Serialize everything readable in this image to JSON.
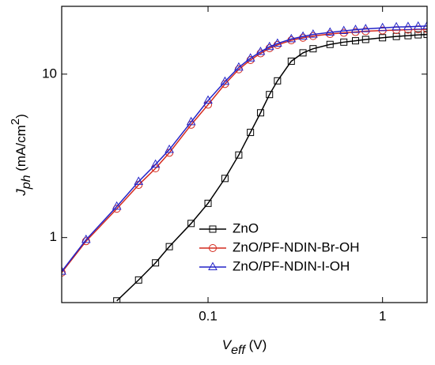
{
  "chart_data": {
    "type": "line",
    "xlabel_parts": [
      "V",
      "eff",
      " (V)"
    ],
    "ylabel_parts": [
      "J",
      "ph",
      " (mA/cm",
      "2",
      ")"
    ],
    "x": [
      0.0145,
      0.02,
      0.03,
      0.04,
      0.05,
      0.06,
      0.08,
      0.1,
      0.125,
      0.15,
      0.175,
      0.2,
      0.225,
      0.25,
      0.3,
      0.35,
      0.4,
      0.5,
      0.6,
      0.7,
      0.8,
      1.0,
      1.2,
      1.4,
      1.6,
      1.8
    ],
    "series": [
      {
        "name": "ZnO",
        "color": "#000000",
        "marker": "square",
        "values": [
          null,
          null,
          0.41,
          0.55,
          0.7,
          0.88,
          1.22,
          1.62,
          2.3,
          3.2,
          4.4,
          5.8,
          7.5,
          9.1,
          12,
          13.5,
          14.3,
          15.2,
          15.7,
          16.0,
          16.3,
          16.7,
          17.0,
          17.2,
          17.4,
          17.5
        ]
      },
      {
        "name": "ZnO/PF-NDIN-Br-OH",
        "color": "#d42a1e",
        "marker": "circle",
        "values": [
          0.61,
          0.95,
          1.5,
          2.1,
          2.65,
          3.3,
          4.9,
          6.5,
          8.7,
          10.7,
          12.2,
          13.4,
          14.4,
          15.1,
          16.1,
          16.7,
          17.1,
          17.6,
          17.9,
          18.1,
          18.3,
          18.5,
          18.6,
          18.7,
          18.8,
          18.8
        ]
      },
      {
        "name": "ZnO/PF-NDIN-I-OH",
        "color": "#2424c8",
        "marker": "triangle",
        "values": [
          0.62,
          0.97,
          1.55,
          2.2,
          2.8,
          3.45,
          5.1,
          6.9,
          9.0,
          11.0,
          12.5,
          13.7,
          14.7,
          15.4,
          16.4,
          17.0,
          17.5,
          18.0,
          18.4,
          18.7,
          18.9,
          19.2,
          19.4,
          19.5,
          19.6,
          19.7
        ]
      }
    ],
    "xlim": [
      0.0145,
      1.8
    ],
    "ylim": [
      0.4,
      26
    ],
    "xticks": [
      0.1,
      1
    ],
    "yticks": [
      1,
      10
    ],
    "xscale": "log",
    "yscale": "log",
    "legend": "lower right"
  }
}
